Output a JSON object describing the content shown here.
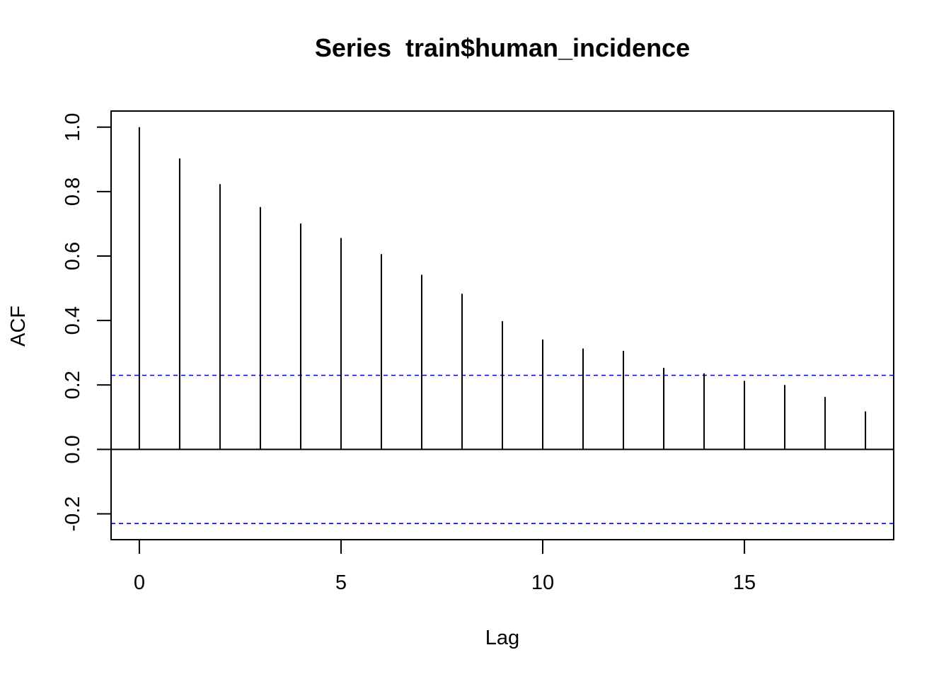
{
  "chart_data": {
    "type": "bar",
    "title": "Series  train$human_incidence",
    "xlabel": "Lag",
    "ylabel": "ACF",
    "xlim": [
      -0.7,
      18.7
    ],
    "ylim": [
      -0.28,
      1.05
    ],
    "x_ticks": [
      0,
      5,
      10,
      15
    ],
    "x_tick_labels": [
      "0",
      "5",
      "10",
      "15"
    ],
    "y_ticks": [
      -0.2,
      0.0,
      0.2,
      0.4,
      0.6,
      0.8,
      1.0
    ],
    "y_tick_labels": [
      "-0.2",
      "0.0",
      "0.2",
      "0.4",
      "0.6",
      "0.8",
      "1.0"
    ],
    "lags": [
      0,
      1,
      2,
      3,
      4,
      5,
      6,
      7,
      8,
      9,
      10,
      11,
      12,
      13,
      14,
      15,
      16,
      17,
      18
    ],
    "values": [
      1.0,
      0.903,
      0.823,
      0.752,
      0.701,
      0.656,
      0.606,
      0.542,
      0.483,
      0.398,
      0.341,
      0.313,
      0.306,
      0.253,
      0.236,
      0.213,
      0.2,
      0.163,
      0.118
    ],
    "confidence_bound": 0.23,
    "bound_color": "#0000ff",
    "bar_color": "#000000",
    "grid": false
  }
}
